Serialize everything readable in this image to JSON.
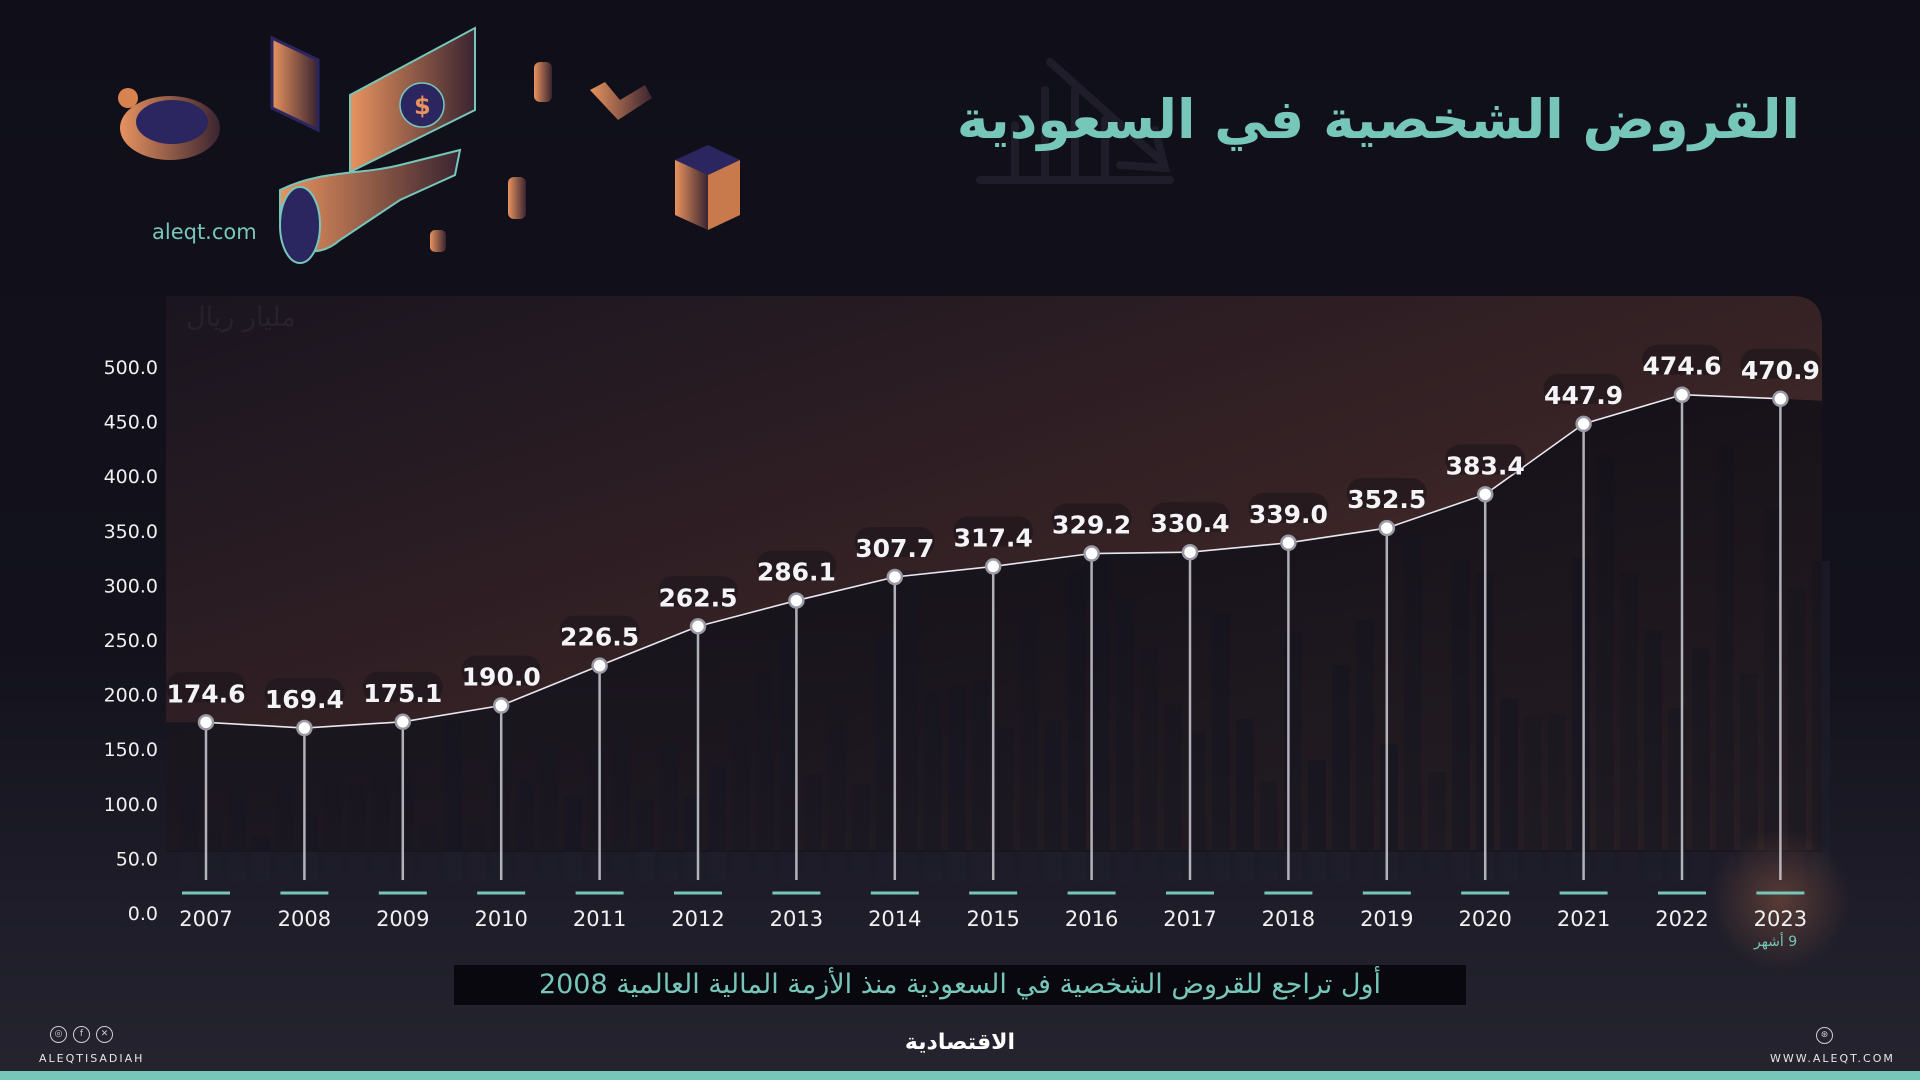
{
  "header": {
    "title": "القروض الشخصية في السعودية",
    "site": "aleqt.com",
    "unit_label": "مليار ريال"
  },
  "footer": {
    "subtitle": "أول تراجع للقروض الشخصية في السعودية منذ الأزمة المالية العالمية 2008",
    "brand": "الاقتصادية",
    "social_handle": "ALEQTISADIAH",
    "website": "WWW.ALEQT.COM",
    "social_icons": [
      "instagram-icon",
      "facebook-icon",
      "x-icon"
    ],
    "last_year_note": "9 أشهر"
  },
  "colors": {
    "accent": "#76c6b9",
    "background": "#100f19",
    "area_top": "#8a5a44",
    "area_bottom": "#2a1f24",
    "line": "#e8e8ee"
  },
  "chart_data": {
    "type": "line",
    "title": "القروض الشخصية في السعودية",
    "subtitle": "أول تراجع للقروض الشخصية في السعودية منذ الأزمة المالية العالمية 2008",
    "xlabel": "",
    "ylabel": "مليار ريال",
    "categories": [
      "2007",
      "2008",
      "2009",
      "2010",
      "2011",
      "2012",
      "2013",
      "2014",
      "2015",
      "2016",
      "2017",
      "2018",
      "2019",
      "2020",
      "2021",
      "2022",
      "2023"
    ],
    "values": [
      174.6,
      169.4,
      175.1,
      190.0,
      226.5,
      262.5,
      286.1,
      307.7,
      317.4,
      329.2,
      330.4,
      339.0,
      352.5,
      383.4,
      447.9,
      474.6,
      470.9
    ],
    "value_labels": [
      "174.6",
      "169.4",
      "175.1",
      "190.0",
      "226.5",
      "262.5",
      "286.1",
      "307.7",
      "317.4",
      "329.2",
      "330.4",
      "339.0",
      "352.5",
      "383.4",
      "447.9",
      "474.6",
      "470.9"
    ],
    "yticks": [
      "0.0",
      "50.0",
      "100.0",
      "150.0",
      "200.0",
      "250.0",
      "300.0",
      "350.0",
      "400.0",
      "450.0",
      "500.0"
    ],
    "ylim": [
      0,
      500
    ],
    "grid": false,
    "legend": null,
    "annotations": [
      {
        "category": "2023",
        "text": "9 أشهر"
      }
    ]
  }
}
